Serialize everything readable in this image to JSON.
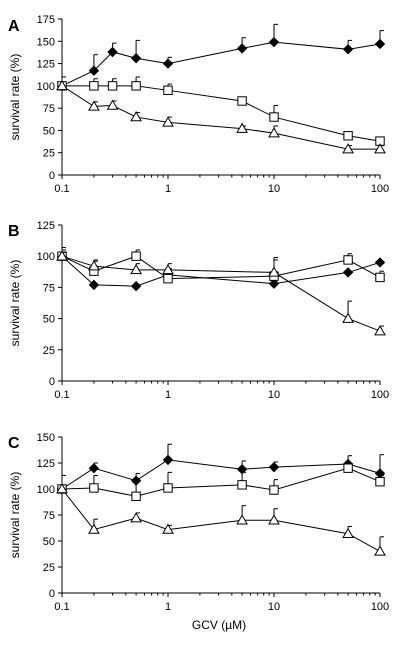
{
  "chart_data": [
    {
      "type": "line",
      "panel_label": "A",
      "ylabel": "survival rate (%)",
      "xlabel": "",
      "xscale": "log",
      "xlim": [
        0.1,
        100
      ],
      "ylim": [
        0,
        175
      ],
      "yticks": [
        0,
        25,
        50,
        75,
        100,
        125,
        150,
        175
      ],
      "xticks": [
        0.1,
        1,
        10,
        100
      ],
      "xtick_labels": [
        "0.1",
        "1",
        "10",
        "100"
      ],
      "x": [
        0.1,
        0.2,
        0.3,
        0.5,
        1,
        5,
        10,
        50,
        100
      ],
      "grid": false,
      "series": [
        {
          "marker": "diamond-filled",
          "values": [
            100,
            117,
            138,
            131,
            125,
            142,
            149,
            141,
            147
          ],
          "errors": [
            0,
            18,
            10,
            20,
            7,
            12,
            20,
            10,
            15
          ]
        },
        {
          "marker": "square-open",
          "values": [
            100,
            100,
            100,
            100,
            95,
            83,
            65,
            44,
            38
          ],
          "errors": [
            10,
            8,
            8,
            10,
            7,
            4,
            13,
            4,
            3
          ]
        },
        {
          "marker": "triangle-open",
          "values": [
            100,
            77,
            78,
            65,
            59,
            52,
            47,
            29,
            29
          ],
          "errors": [
            0,
            5,
            5,
            5,
            6,
            3,
            8,
            4,
            4
          ]
        }
      ]
    },
    {
      "type": "line",
      "panel_label": "B",
      "ylabel": "survival rate (%)",
      "xlabel": "",
      "xscale": "log",
      "xlim": [
        0.1,
        100
      ],
      "ylim": [
        0,
        125
      ],
      "yticks": [
        0,
        25,
        50,
        75,
        100,
        125
      ],
      "xticks": [
        0.1,
        1,
        10,
        100
      ],
      "xtick_labels": [
        "0.1",
        "1",
        "10",
        "100"
      ],
      "x": [
        0.1,
        0.2,
        0.5,
        1,
        10,
        50,
        100
      ],
      "grid": false,
      "series": [
        {
          "marker": "diamond-filled",
          "values": [
            100,
            77,
            76,
            85,
            78,
            87,
            95
          ],
          "errors": [
            7,
            0,
            0,
            0,
            0,
            0,
            0
          ]
        },
        {
          "marker": "square-open",
          "values": [
            100,
            88,
            100,
            82,
            84,
            97,
            83
          ],
          "errors": [
            5,
            8,
            5,
            8,
            15,
            5,
            5
          ]
        },
        {
          "marker": "triangle-open",
          "values": [
            100,
            92,
            89,
            89,
            87,
            50,
            40
          ],
          "errors": [
            3,
            5,
            5,
            5,
            10,
            14,
            4
          ]
        }
      ]
    },
    {
      "type": "line",
      "panel_label": "C",
      "ylabel": "survival rate (%)",
      "xlabel": "GCV (µM)",
      "xscale": "log",
      "xlim": [
        0.1,
        100
      ],
      "ylim": [
        0,
        150
      ],
      "yticks": [
        0,
        25,
        50,
        75,
        100,
        125,
        150
      ],
      "xticks": [
        0.1,
        1,
        10,
        100
      ],
      "xtick_labels": [
        "0.1",
        "1",
        "10",
        "100"
      ],
      "x": [
        0.1,
        0.2,
        0.5,
        1,
        5,
        10,
        50,
        100
      ],
      "grid": false,
      "series": [
        {
          "marker": "diamond-filled",
          "values": [
            100,
            120,
            108,
            128,
            119,
            121,
            124,
            115
          ],
          "errors": [
            0,
            5,
            7,
            15,
            8,
            5,
            8,
            18
          ]
        },
        {
          "marker": "square-open",
          "values": [
            100,
            101,
            93,
            101,
            104,
            99,
            120,
            107
          ],
          "errors": [
            0,
            12,
            15,
            15,
            12,
            10,
            5,
            6
          ]
        },
        {
          "marker": "triangle-open",
          "values": [
            100,
            61,
            72,
            61,
            70,
            70,
            57,
            40
          ],
          "errors": [
            13,
            10,
            5,
            4,
            14,
            11,
            7,
            14
          ]
        }
      ]
    }
  ]
}
